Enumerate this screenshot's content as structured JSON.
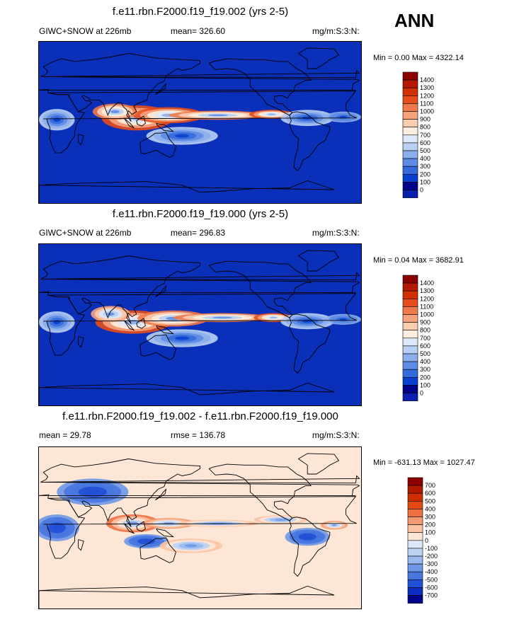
{
  "season_label": "ANN",
  "panels": [
    {
      "title": "f.e11.rbn.F2000.f19_f19.002 (yrs 2-5)",
      "left_label": "GIWC+SNOW at 226mb",
      "center_label": "mean= 326.60",
      "units": "mg/m:S:3:N:",
      "minmax": "Min =   0.00 Max = 4322.14",
      "kind": "abs"
    },
    {
      "title": "f.e11.rbn.F2000.f19_f19.000 (yrs 2-5)",
      "left_label": "GIWC+SNOW at 226mb",
      "center_label": "mean= 296.83",
      "units": "mg/m:S:3:N:",
      "minmax": "Min =  0.04 Max = 3682.91",
      "kind": "abs"
    },
    {
      "title": "f.e11.rbn.F2000.f19_f19.002 - f.e11.rbn.F2000.f19_f19.000",
      "left_label": "mean =  29.78",
      "center_label": "rmse = 136.78",
      "units": "mg/m:S:3:N:",
      "minmax": "Min = -631.13 Max = 1027.47",
      "kind": "diff"
    }
  ],
  "chart_data": {
    "type": "heatmap",
    "colorbars": {
      "abs": {
        "levels": [
          "1400",
          "1300",
          "1200",
          "1100",
          "1000",
          "900",
          "800",
          "700",
          "600",
          "500",
          "400",
          "300",
          "200",
          "100",
          "0"
        ],
        "colors": [
          "#8b0000",
          "#b51a00",
          "#d33000",
          "#e54d1a",
          "#f07a4a",
          "#f6a27c",
          "#fbcdb0",
          "#fdeee0",
          "#dde9f8",
          "#b8d0f3",
          "#8caeec",
          "#5e8be3",
          "#336bdc",
          "#0a3fd0",
          "#00008b",
          "#0a1fb0"
        ]
      },
      "diff": {
        "levels": [
          "700",
          "600",
          "500",
          "400",
          "300",
          "200",
          "100",
          "0",
          "-100",
          "-200",
          "-300",
          "-400",
          "-500",
          "-600",
          "-700"
        ],
        "colors": [
          "#8b0000",
          "#b01a00",
          "#cc3000",
          "#e04a14",
          "#ee7040",
          "#f59a72",
          "#fbc3a3",
          "#fde6d6",
          "#dce8f8",
          "#bcd2f3",
          "#98b8ee",
          "#6f97e6",
          "#4876df",
          "#2050d6",
          "#0a2fc0",
          "#00008b"
        ]
      }
    },
    "map_fields": [
      {
        "background": "#0a2fb8",
        "blobs": [
          {
            "lon": 110,
            "lat": 5,
            "rx": 40,
            "ry": 14,
            "level": 12
          },
          {
            "lon": 145,
            "lat": 8,
            "rx": 40,
            "ry": 9,
            "level": 12
          },
          {
            "lon": 85,
            "lat": 12,
            "rx": 25,
            "ry": 9,
            "level": 11
          },
          {
            "lon": 200,
            "lat": 8,
            "rx": 55,
            "ry": 5,
            "level": 11
          },
          {
            "lon": 260,
            "lat": 9,
            "rx": 25,
            "ry": 5,
            "level": 12
          },
          {
            "lon": 300,
            "lat": 5,
            "rx": 30,
            "ry": 9,
            "level": 6
          },
          {
            "lon": 20,
            "lat": 3,
            "rx": 20,
            "ry": 12,
            "level": 6
          },
          {
            "lon": 160,
            "lat": -15,
            "rx": 40,
            "ry": 10,
            "level": 6
          },
          {
            "lon": 340,
            "lat": 6,
            "rx": 20,
            "ry": 6,
            "level": 5
          }
        ]
      },
      {
        "background": "#0a2fb8",
        "blobs": [
          {
            "lon": 105,
            "lat": 3,
            "rx": 42,
            "ry": 13,
            "level": 12
          },
          {
            "lon": 150,
            "lat": 7,
            "rx": 40,
            "ry": 9,
            "level": 11
          },
          {
            "lon": 80,
            "lat": 12,
            "rx": 22,
            "ry": 9,
            "level": 10
          },
          {
            "lon": 205,
            "lat": 8,
            "rx": 55,
            "ry": 5,
            "level": 11
          },
          {
            "lon": 262,
            "lat": 8,
            "rx": 22,
            "ry": 5,
            "level": 12
          },
          {
            "lon": 300,
            "lat": 4,
            "rx": 30,
            "ry": 9,
            "level": 6
          },
          {
            "lon": 20,
            "lat": 3,
            "rx": 20,
            "ry": 12,
            "level": 6
          },
          {
            "lon": 160,
            "lat": -15,
            "rx": 40,
            "ry": 10,
            "level": 6
          },
          {
            "lon": 340,
            "lat": 6,
            "rx": 20,
            "ry": 6,
            "level": 5
          }
        ]
      },
      {
        "background": "#fde6d6",
        "blobs": [
          {
            "lon": 105,
            "lat": 5,
            "rx": 30,
            "ry": 10,
            "level": 11
          },
          {
            "lon": 145,
            "lat": 5,
            "rx": 30,
            "ry": 6,
            "level": 10
          },
          {
            "lon": 200,
            "lat": 5,
            "rx": 45,
            "ry": 4,
            "level": 9
          },
          {
            "lon": 270,
            "lat": 9,
            "rx": 30,
            "ry": 5,
            "level": 9
          },
          {
            "lon": 330,
            "lat": 3,
            "rx": 15,
            "ry": 5,
            "level": 10
          },
          {
            "lon": 20,
            "lat": 0,
            "rx": 25,
            "ry": 15,
            "level": 4
          },
          {
            "lon": 120,
            "lat": -15,
            "rx": 25,
            "ry": 8,
            "level": 4
          },
          {
            "lon": 170,
            "lat": -20,
            "rx": 35,
            "ry": 8,
            "level": 9
          },
          {
            "lon": 300,
            "lat": -10,
            "rx": 25,
            "ry": 10,
            "level": 4
          },
          {
            "lon": 60,
            "lat": 40,
            "rx": 40,
            "ry": 15,
            "level": 4
          }
        ]
      }
    ]
  }
}
